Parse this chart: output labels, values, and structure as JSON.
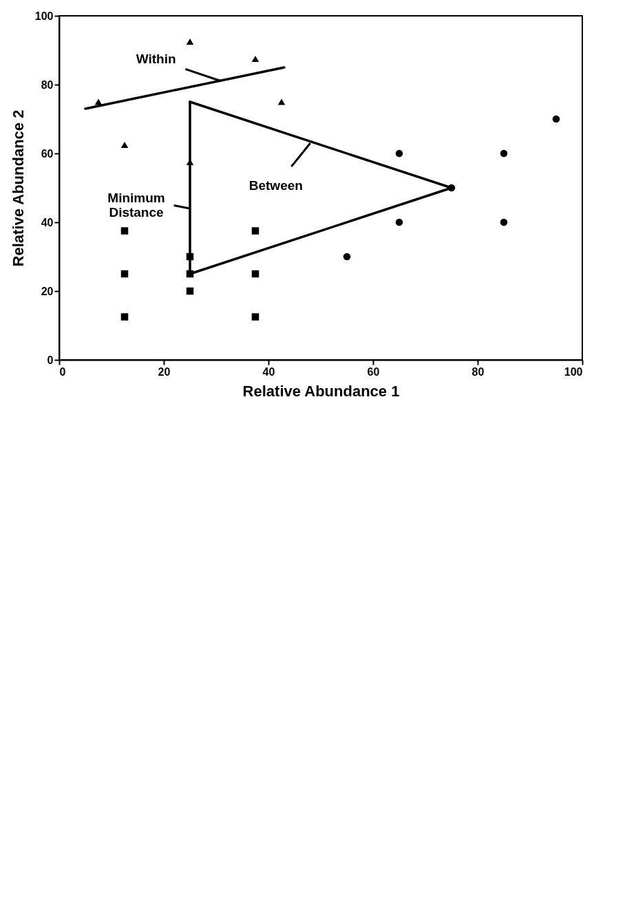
{
  "chart_data": {
    "type": "scatter",
    "xlabel": "Relative Abundance 1",
    "ylabel": "Relative Abundance 2",
    "xlim": [
      0,
      100
    ],
    "ylim": [
      0,
      100
    ],
    "xticks": [
      0,
      20,
      40,
      60,
      80,
      100
    ],
    "yticks": [
      0,
      20,
      40,
      60,
      80,
      100
    ],
    "series": [
      {
        "marker": "circle",
        "color": "#000000",
        "x": [
          95,
          85,
          85,
          75,
          65,
          65,
          55
        ],
        "values": [
          70,
          60,
          40,
          50,
          60,
          40,
          30
        ]
      },
      {
        "marker": "triangle",
        "color": "#000000",
        "x": [
          42.5,
          37.5,
          25,
          25,
          12.5,
          7.5
        ],
        "values": [
          75,
          87.5,
          92.5,
          57.5,
          62.5,
          75
        ]
      },
      {
        "marker": "square",
        "color": "#000000",
        "x": [
          37.5,
          37.5,
          37.5,
          25,
          25,
          25,
          12.5,
          12.5,
          12.5
        ],
        "values": [
          37.5,
          25,
          12.5,
          30,
          25,
          20,
          37.5,
          25,
          12.5
        ]
      },
      {
        "type": "line",
        "line_style": "solid",
        "color": "#000000",
        "x": [
          25,
          75,
          25
        ],
        "values": [
          75,
          50,
          25
        ]
      },
      {
        "type": "line",
        "line_style": "solid",
        "color": "#000000",
        "x": [
          25,
          25
        ],
        "values": [
          75,
          25
        ]
      },
      {
        "type": "line",
        "line_style": "solid",
        "color": "#000000",
        "x": [
          43,
          5
        ],
        "values": [
          85,
          73
        ]
      }
    ],
    "annotations": [
      {
        "text": "Within",
        "x": 31,
        "y": 81
      },
      {
        "text": "Between",
        "x": 48,
        "y": 63
      },
      {
        "text": "Minimum Distance",
        "x": 25,
        "y": 44
      }
    ]
  }
}
